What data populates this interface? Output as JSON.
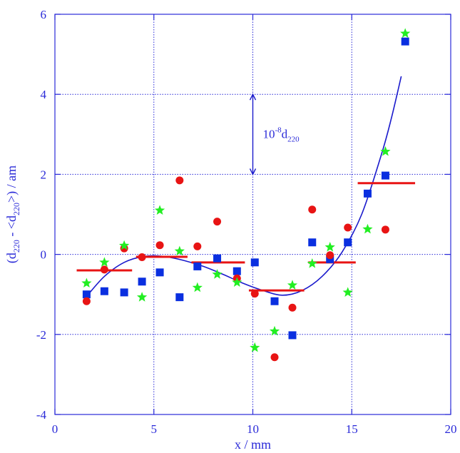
{
  "chart_data": {
    "type": "scatter",
    "xlabel": "x / mm",
    "ylabel_parts": [
      "(d",
      "220",
      " - <d",
      "220",
      ">) / am"
    ],
    "xlim": [
      0,
      20
    ],
    "ylim": [
      -4,
      6
    ],
    "x_ticks": [
      0,
      5,
      10,
      15,
      20
    ],
    "x_tick_labels": [
      "0",
      "5",
      "10",
      "15",
      "20"
    ],
    "y_ticks": [
      -4,
      -2,
      0,
      2,
      4,
      6
    ],
    "y_tick_labels": [
      "-4",
      "-2",
      "0",
      "2",
      "4",
      "6"
    ],
    "grid": true,
    "colors": {
      "axis": "#2a2ad8",
      "grid": "#2a2ad8",
      "squares": "#0a2fe0",
      "circles": "#e81414",
      "stars": "#22ee22",
      "steps": "#e81414",
      "curve": "#1a1acc"
    },
    "series": [
      {
        "marker": "square",
        "x": [
          1.6,
          2.5,
          3.5,
          4.4,
          5.3,
          6.3,
          7.2,
          8.2,
          9.2,
          10.1,
          11.1,
          12.0,
          13.0,
          13.9,
          14.8,
          15.8,
          16.7,
          17.7
        ],
        "y": [
          -1.0,
          -0.92,
          -0.95,
          -0.68,
          -0.45,
          -1.07,
          -0.3,
          -0.1,
          -0.42,
          -0.2,
          -1.17,
          -2.02,
          0.3,
          -0.12,
          0.3,
          1.52,
          1.97,
          5.32
        ]
      },
      {
        "marker": "circle",
        "x": [
          1.6,
          2.5,
          3.5,
          4.4,
          5.3,
          6.3,
          7.2,
          8.2,
          9.2,
          10.1,
          11.1,
          12.0,
          13.0,
          13.9,
          14.8,
          16.7
        ],
        "y": [
          -1.17,
          -0.38,
          0.15,
          -0.07,
          0.23,
          1.85,
          0.2,
          0.82,
          -0.6,
          -0.98,
          -2.57,
          -1.33,
          1.12,
          -0.02,
          0.67,
          0.62
        ]
      },
      {
        "marker": "star",
        "x": [
          1.6,
          2.5,
          3.5,
          4.4,
          5.3,
          6.3,
          7.2,
          8.2,
          9.2,
          10.1,
          11.1,
          12.0,
          13.0,
          13.9,
          14.8,
          15.8,
          16.7,
          17.7
        ],
        "y": [
          -0.72,
          -0.2,
          0.22,
          -1.07,
          1.1,
          0.08,
          -0.83,
          -0.5,
          -0.7,
          -2.33,
          -1.92,
          -0.77,
          -0.23,
          0.18,
          -0.95,
          0.63,
          2.57,
          5.52
        ]
      }
    ],
    "step_segments": [
      {
        "x": [
          1.1,
          3.9
        ],
        "y": -0.4
      },
      {
        "x": [
          4.1,
          6.7
        ],
        "y": -0.06
      },
      {
        "x": [
          6.9,
          9.6
        ],
        "y": -0.2
      },
      {
        "x": [
          9.8,
          12.6
        ],
        "y": -0.9
      },
      {
        "x": [
          12.8,
          15.2
        ],
        "y": -0.2
      },
      {
        "x": [
          15.3,
          18.2
        ],
        "y": 1.78
      }
    ],
    "fit_curve": {
      "x": [
        1.6,
        2.5,
        3.5,
        4.5,
        5.5,
        6.5,
        7.5,
        8.5,
        9.5,
        10.5,
        11.5,
        12.5,
        13.5,
        14.5,
        15.5,
        16.5,
        17.0,
        17.5
      ],
      "y": [
        -1.05,
        -0.55,
        -0.2,
        -0.05,
        -0.05,
        -0.15,
        -0.3,
        -0.5,
        -0.72,
        -0.9,
        -1.02,
        -0.9,
        -0.55,
        0.05,
        1.0,
        2.5,
        3.4,
        4.45
      ]
    },
    "scale_bar": {
      "x": 10,
      "y_from": 2.0,
      "y_to": 4.0,
      "label_main": "10",
      "label_sup": "-8",
      "label_rest": "d",
      "label_sub": "220"
    }
  }
}
